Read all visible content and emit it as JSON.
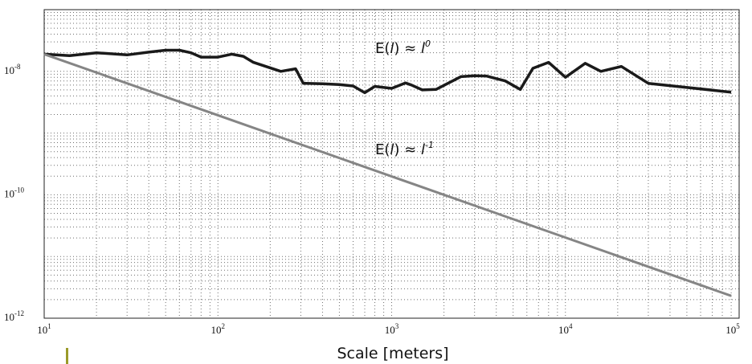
{
  "colors": {
    "series_measured": "#1a1a1a",
    "series_reference": "#858585",
    "grid": "#6e6e6e",
    "axes": "#222222",
    "marker": "#9a9a2a"
  },
  "chart_data": {
    "type": "line",
    "xscale": "log",
    "yscale": "log",
    "xlim": [
      10,
      100000
    ],
    "ylim": [
      1e-12,
      1e-07
    ],
    "grid": true,
    "xlabel": "Scale [meters]",
    "ylabel": "",
    "x_tick_labels": [
      {
        "value": 10,
        "base": "10",
        "exp": "1"
      },
      {
        "value": 100,
        "base": "10",
        "exp": "2"
      },
      {
        "value": 1000,
        "base": "10",
        "exp": "3"
      },
      {
        "value": 10000,
        "base": "10",
        "exp": "4"
      },
      {
        "value": 100000,
        "base": "10",
        "exp": "5"
      }
    ],
    "y_tick_labels": [
      {
        "value": 1e-08,
        "base": "10",
        "exp": "-8"
      },
      {
        "value": 1e-10,
        "base": "10",
        "exp": "-10"
      },
      {
        "value": 1e-12,
        "base": "10",
        "exp": "-12"
      }
    ],
    "series": [
      {
        "style": "measured",
        "x": [
          10,
          14,
          20,
          30,
          40,
          50,
          60,
          70,
          80,
          100,
          120,
          140,
          160,
          230,
          280,
          310,
          400,
          500,
          600,
          700,
          800,
          1000,
          1200,
          1300,
          1500,
          1800,
          2500,
          3000,
          3500,
          4500,
          5500,
          6500,
          8000,
          10000,
          13000,
          16000,
          21000,
          30000,
          90000
        ],
        "y": [
          1.9e-08,
          1.8e-08,
          2e-08,
          1.85e-08,
          2.05e-08,
          2.2e-08,
          2.2e-08,
          2e-08,
          1.7e-08,
          1.7e-08,
          1.9e-08,
          1.75e-08,
          1.4e-08,
          1e-08,
          1.1e-08,
          6.4e-09,
          6.3e-09,
          6.1e-09,
          5.8e-09,
          4.5e-09,
          5.7e-09,
          5.3e-09,
          6.5e-09,
          6e-09,
          5e-09,
          5.1e-09,
          8.2e-09,
          8.5e-09,
          8.4e-09,
          7e-09,
          5.1e-09,
          1.12e-08,
          1.4e-08,
          8e-09,
          1.35e-08,
          1e-08,
          1.2e-08,
          6.4e-09,
          4.6e-09
        ]
      },
      {
        "style": "reference",
        "x": [
          10,
          90000
        ],
        "y": [
          1.9e-08,
          2.3e-12
        ]
      }
    ],
    "annotations": [
      {
        "id": "zero",
        "pre": "E(",
        "var": "l",
        "mid": ") ≈ ",
        "base": "l",
        "exp": "0",
        "x": 1000,
        "y": 2.3e-08
      },
      {
        "id": "minus-one",
        "pre": "E(",
        "var": "l",
        "mid": ") ≈ ",
        "base": "l",
        "exp": "-1",
        "x": 1000,
        "y": 7e-10
      }
    ]
  }
}
